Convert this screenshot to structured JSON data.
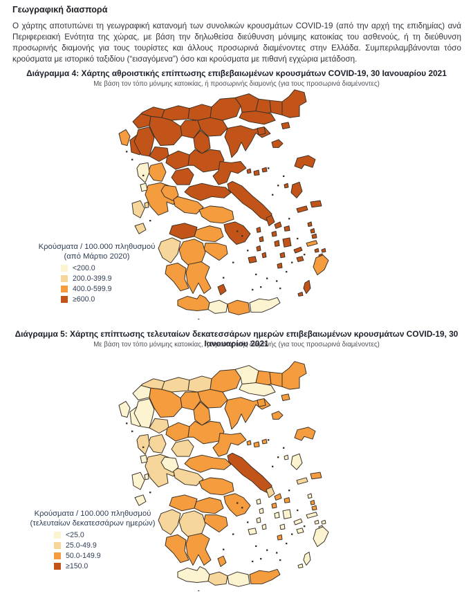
{
  "heading": "Γεωγραφική διασπορά",
  "intro": "Ο χάρτης αποτυπώνει τη γεωγραφική κατανομή των συνολικών κρουσμάτων COVID-19 (από την αρχή της επιδημίας) ανά Περιφερειακή Ενότητα της χώρας, με βάση την δηλωθείσα διεύθυνση μόνιμης κατοικίας του ασθενούς, ή τη διεύθυνση προσωρινής διαμονής για τους τουρίστες και άλλους προσωρινά διαμένοντες στην Ελλάδα. Συμπεριλαμβάνονται τόσο κρούσματα με ιστορικό ταξιδίου (“εισαγόμενα”) όσο και κρούσματα με πιθανή εγχώρια μετάδοση.",
  "figures": [
    {
      "title": "Διάγραμμα 4: Χάρτης αθροιστικής επίπτωσης επιβεβαιωμένων κρουσμάτων COVID-19, 30 Ιανουαρίου 2021",
      "subtitle": "Με βάση τον τόπο μόνιμης κατοικίας, ή προσωρινής διαμονής (για τους προσωρινά διαμένοντες)",
      "legend": {
        "title_line1": "Κρούσματα / 100.000 πληθυσμού",
        "title_line2": "(από Μάρτιο 2020)",
        "items": [
          {
            "label": "<200.0",
            "color": "#FCF4D1",
            "category": 1
          },
          {
            "label": "200.0-399.9",
            "color": "#F6D69B",
            "category": 2
          },
          {
            "label": "400.0-599.9",
            "color": "#F59C3E",
            "category": 3
          },
          {
            "label": "≥600.0",
            "color": "#C2541A",
            "category": 4
          }
        ]
      },
      "map_key": "cumulative"
    },
    {
      "title": "Διάγραμμα 5: Χάρτης επίπτωσης τελευταίων δεκατεσσάρων ημερών επιβεβαιωμένων κρουσμάτων COVID-19, 30 Ιανουαρίου 2021",
      "subtitle": "Με βάση τον τόπο μόνιμης κατοικίας, ή προσωρινής διαμονής (για τους προσωρινά διαμένοντες)",
      "legend": {
        "title_line1": "Κρούσματα / 100.000 πληθυσμού",
        "title_line2": "(τελευταίων δεκατεσσάρων ημερών)",
        "items": [
          {
            "label": "<25.0",
            "color": "#FCF4D1",
            "category": 1
          },
          {
            "label": "25.0-49.9",
            "color": "#F6D69B",
            "category": 2
          },
          {
            "label": "50.0-149.9",
            "color": "#F59C3E",
            "category": 3
          },
          {
            "label": "≥150.0",
            "color": "#C2541A",
            "category": 4
          }
        ]
      },
      "map_key": "last14"
    }
  ],
  "map_colors": {
    "c1": "#FCF4D1",
    "c2": "#F6D69B",
    "c3": "#F59C3E",
    "c4": "#C2541A",
    "border": "#3A3024"
  },
  "regions": [
    {
      "id": "kastoria",
      "cumulative": 4,
      "last14": 1
    },
    {
      "id": "florina",
      "cumulative": 4,
      "last14": 2
    },
    {
      "id": "pella",
      "cumulative": 4,
      "last14": 2
    },
    {
      "id": "kilkis",
      "cumulative": 4,
      "last14": 2
    },
    {
      "id": "serres",
      "cumulative": 4,
      "last14": 3
    },
    {
      "id": "drama",
      "cumulative": 4,
      "last14": 1
    },
    {
      "id": "xanthi",
      "cumulative": 4,
      "last14": 3
    },
    {
      "id": "rodopi",
      "cumulative": 4,
      "last14": 3
    },
    {
      "id": "evros",
      "cumulative": 4,
      "last14": 3
    },
    {
      "id": "kavala",
      "cumulative": 4,
      "last14": 1
    },
    {
      "id": "thessaloniki",
      "cumulative": 4,
      "last14": 3
    },
    {
      "id": "imathia",
      "cumulative": 4,
      "last14": 3
    },
    {
      "id": "kozani",
      "cumulative": 4,
      "last14": 3
    },
    {
      "id": "grevena",
      "cumulative": 4,
      "last14": 2
    },
    {
      "id": "pieria",
      "cumulative": 4,
      "last14": 3
    },
    {
      "id": "thesprotia",
      "cumulative": 4,
      "last14": 1
    },
    {
      "id": "ioannina",
      "cumulative": 4,
      "last14": 1
    },
    {
      "id": "chalkidiki",
      "cumulative": 4,
      "last14": 3
    },
    {
      "id": "trikala",
      "cumulative": 4,
      "last14": 3
    },
    {
      "id": "larissa",
      "cumulative": 4,
      "last14": 3
    },
    {
      "id": "karditsa",
      "cumulative": 4,
      "last14": 2
    },
    {
      "id": "magnesia",
      "cumulative": 4,
      "last14": 3
    },
    {
      "id": "evia",
      "cumulative": 4,
      "last14": 4
    },
    {
      "id": "fthiotida",
      "cumulative": 4,
      "last14": 3
    },
    {
      "id": "attiki",
      "cumulative": 4,
      "last14": 3
    },
    {
      "id": "achaia",
      "cumulative": 4,
      "last14": 3
    },
    {
      "id": "arta",
      "cumulative": 3,
      "last14": 2
    },
    {
      "id": "preveza",
      "cumulative": 1,
      "last14": 2
    },
    {
      "id": "aetolia",
      "cumulative": 3,
      "last14": 2
    },
    {
      "id": "evrytania",
      "cumulative": 3,
      "last14": 1
    },
    {
      "id": "fokida",
      "cumulative": 3,
      "last14": 2
    },
    {
      "id": "viotia",
      "cumulative": 3,
      "last14": 3
    },
    {
      "id": "korinthia",
      "cumulative": 3,
      "last14": 3
    },
    {
      "id": "argolida",
      "cumulative": 3,
      "last14": 3
    },
    {
      "id": "arkadia",
      "cumulative": 3,
      "last14": 2
    },
    {
      "id": "ilia",
      "cumulative": 2,
      "last14": 2
    },
    {
      "id": "messinia",
      "cumulative": 3,
      "last14": 3
    },
    {
      "id": "lakonia",
      "cumulative": 3,
      "last14": 3
    },
    {
      "id": "kerkyra",
      "cumulative": 3,
      "last14": 1
    },
    {
      "id": "lefkada",
      "cumulative": 1,
      "last14": 1
    },
    {
      "id": "ithaki",
      "cumulative": 2,
      "last14": 1
    },
    {
      "id": "kefalonia",
      "cumulative": 2,
      "last14": 1
    },
    {
      "id": "zakynthos",
      "cumulative": 2,
      "last14": 1
    },
    {
      "id": "thasos",
      "cumulative": 4,
      "last14": 3
    },
    {
      "id": "samothraki",
      "cumulative": 4,
      "last14": 3
    },
    {
      "id": "limnos",
      "cumulative": 4,
      "last14": 3
    },
    {
      "id": "lesvos",
      "cumulative": 4,
      "last14": 3
    },
    {
      "id": "psara",
      "cumulative": 4,
      "last14": 1
    },
    {
      "id": "chios",
      "cumulative": 4,
      "last14": 1
    },
    {
      "id": "samos",
      "cumulative": 4,
      "last14": 3
    },
    {
      "id": "ikaria",
      "cumulative": 4,
      "last14": 2
    },
    {
      "id": "skiathos",
      "cumulative": 4,
      "last14": 3
    },
    {
      "id": "skopelos",
      "cumulative": 4,
      "last14": 3
    },
    {
      "id": "alonissos",
      "cumulative": 4,
      "last14": 3
    },
    {
      "id": "kea",
      "cumulative": 4,
      "last14": 1
    },
    {
      "id": "andros",
      "cumulative": 4,
      "last14": 2
    },
    {
      "id": "tinos",
      "cumulative": 4,
      "last14": 3
    },
    {
      "id": "mykonos",
      "cumulative": 4,
      "last14": 3
    },
    {
      "id": "syros",
      "cumulative": 4,
      "last14": 3
    },
    {
      "id": "kythnos",
      "cumulative": 4,
      "last14": 1
    },
    {
      "id": "serifos",
      "cumulative": 4,
      "last14": 1
    },
    {
      "id": "sifnos",
      "cumulative": 4,
      "last14": 1
    },
    {
      "id": "milos",
      "cumulative": 4,
      "last14": 1
    },
    {
      "id": "paros",
      "cumulative": 4,
      "last14": 1
    },
    {
      "id": "naxos",
      "cumulative": 4,
      "last14": 1
    },
    {
      "id": "ios",
      "cumulative": 4,
      "last14": 1
    },
    {
      "id": "santorini",
      "cumulative": 4,
      "last14": 3
    },
    {
      "id": "amorgos",
      "cumulative": 4,
      "last14": 1
    },
    {
      "id": "astypalea",
      "cumulative": 4,
      "last14": 1
    },
    {
      "id": "patmos",
      "cumulative": 4,
      "last14": 1
    },
    {
      "id": "leros",
      "cumulative": 4,
      "last14": 3
    },
    {
      "id": "kalymnos",
      "cumulative": 4,
      "last14": 3
    },
    {
      "id": "kos",
      "cumulative": 3,
      "last14": 1
    },
    {
      "id": "nisyros",
      "cumulative": 4,
      "last14": 1
    },
    {
      "id": "tilos",
      "cumulative": 4,
      "last14": 1
    },
    {
      "id": "symi",
      "cumulative": 4,
      "last14": 1
    },
    {
      "id": "rhodes",
      "cumulative": 3,
      "last14": 1
    },
    {
      "id": "karpathos",
      "cumulative": 4,
      "last14": 1
    },
    {
      "id": "kasos",
      "cumulative": 4,
      "last14": 1
    },
    {
      "id": "kythira",
      "cumulative": 4,
      "last14": 3
    },
    {
      "id": "crete_chania",
      "cumulative": 3,
      "last14": 1
    },
    {
      "id": "crete_rethymno",
      "cumulative": 1,
      "last14": 2
    },
    {
      "id": "crete_heraklion",
      "cumulative": 3,
      "last14": 1
    },
    {
      "id": "crete_lasithi",
      "cumulative": 1,
      "last14": 3
    }
  ]
}
